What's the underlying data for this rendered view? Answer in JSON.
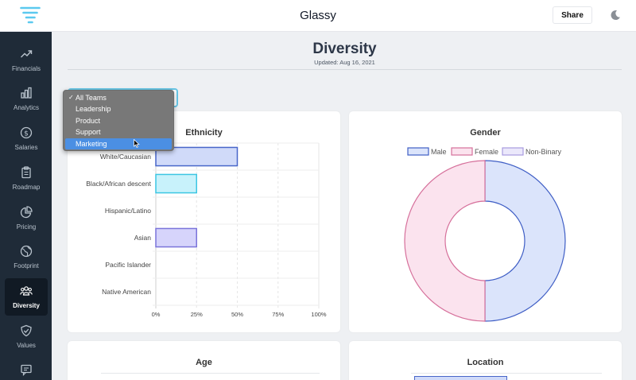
{
  "app": {
    "title": "Glassy",
    "share_label": "Share"
  },
  "sidebar": {
    "items": [
      {
        "label": "Financials",
        "icon": "trending-up-icon"
      },
      {
        "label": "Analytics",
        "icon": "bar-chart-icon"
      },
      {
        "label": "Salaries",
        "icon": "dollar-icon"
      },
      {
        "label": "Roadmap",
        "icon": "clipboard-icon"
      },
      {
        "label": "Pricing",
        "icon": "pie-chart-icon"
      },
      {
        "label": "Footprint",
        "icon": "globe-icon"
      },
      {
        "label": "Diversity",
        "icon": "people-icon"
      },
      {
        "label": "Values",
        "icon": "shield-check-icon"
      },
      {
        "label": "",
        "icon": "message-icon"
      }
    ],
    "active": "Diversity"
  },
  "page": {
    "title": "Diversity",
    "updated": "Updated: Aug 16, 2021"
  },
  "team_filter": {
    "options": [
      "All Teams",
      "Leadership",
      "Product",
      "Support",
      "Marketing"
    ],
    "checked": "All Teams",
    "highlighted": "Marketing"
  },
  "colors": {
    "male_fill": "#dbe4fb",
    "male_border": "#3f5ec5",
    "female_fill": "#fbe3ee",
    "female_border": "#d6709b",
    "nonbinary_fill": "#ebe8fb",
    "nonbinary_border": "#a89be0",
    "asian_fill": "#d6d4fb",
    "asian_border": "#7b74da",
    "white_fill": "#d0daf9",
    "white_border": "#4866c9",
    "black_fill": "#c8f2fb",
    "black_border": "#3cc6e3"
  },
  "cards": {
    "ethnicity": "Ethnicity",
    "gender": "Gender",
    "age": "Age",
    "location": "Location"
  },
  "chart_data": [
    {
      "type": "bar",
      "orientation": "horizontal",
      "title": "Ethnicity",
      "categories": [
        "White/Caucasian",
        "Black/African descent",
        "Hispanic/Latino",
        "Asian",
        "Pacific Islander",
        "Native American"
      ],
      "values": [
        50,
        25,
        0,
        25,
        0,
        0
      ],
      "xlim": [
        0,
        100
      ],
      "xticks": [
        "0%",
        "25%",
        "50%",
        "75%",
        "100%"
      ]
    },
    {
      "type": "pie",
      "subtype": "doughnut",
      "title": "Gender",
      "legend": [
        "Male",
        "Female",
        "Non-Binary"
      ],
      "values": [
        50,
        50,
        0
      ],
      "legend_position": "top"
    }
  ]
}
